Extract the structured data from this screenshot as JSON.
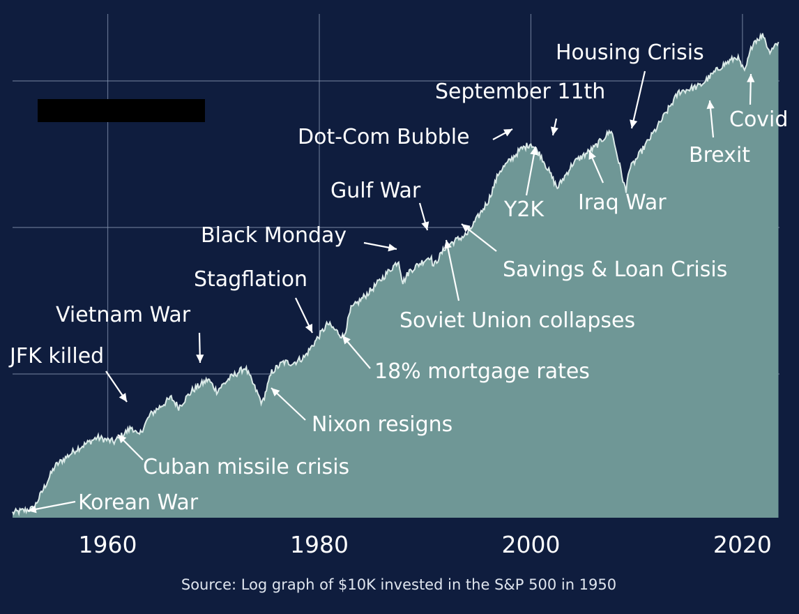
{
  "chart_data": {
    "type": "area",
    "xlabel": "",
    "ylabel": "",
    "source": "Source: Log graph of $10K invested in the S&P 500 in 1950",
    "xlim": [
      1951,
      2023.5
    ],
    "x_ticks": [
      1960,
      1980,
      2000,
      2020
    ],
    "x_tick_labels": [
      "1960",
      "1980",
      "2000",
      "2020"
    ],
    "y_scale": "log",
    "grid": true,
    "colors": {
      "background": "#0f1d3e",
      "area": "#6f9796",
      "line": "#dbeae8",
      "grid": "#8797b2",
      "text": "#ffffff",
      "redaction": "#000000"
    },
    "x": [
      1951.0,
      1953.0,
      1955.0,
      1957.0,
      1959.0,
      1960.6,
      1962.3,
      1962.9,
      1964.0,
      1966.0,
      1966.7,
      1968.0,
      1969.5,
      1970.3,
      1971.5,
      1973.0,
      1974.6,
      1975.5,
      1976.6,
      1977.5,
      1978.6,
      1980.0,
      1980.8,
      1982.3,
      1983.0,
      1985.0,
      1987.5,
      1987.9,
      1988.5,
      1990.5,
      1990.8,
      1992.0,
      1994.0,
      1996.0,
      1997.0,
      1999.0,
      2000.0,
      2001.0,
      2002.5,
      2004.0,
      2006.0,
      2007.6,
      2009.0,
      2009.2,
      2010.0,
      2012.0,
      2014.0,
      2016.0,
      2018.0,
      2019.5,
      2020.2,
      2021.0,
      2022.0,
      2022.5,
      2023.4
    ],
    "y": [
      0.016,
      0.03,
      0.168,
      0.223,
      0.262,
      0.248,
      0.296,
      0.265,
      0.336,
      0.392,
      0.361,
      0.416,
      0.452,
      0.414,
      0.455,
      0.491,
      0.373,
      0.476,
      0.508,
      0.505,
      0.525,
      0.595,
      0.634,
      0.589,
      0.682,
      0.747,
      0.84,
      0.768,
      0.805,
      0.855,
      0.822,
      0.888,
      0.927,
      1.037,
      1.13,
      1.202,
      1.223,
      1.18,
      1.077,
      1.159,
      1.209,
      1.266,
      1.061,
      1.132,
      1.173,
      1.279,
      1.391,
      1.411,
      1.475,
      1.506,
      1.454,
      1.554,
      1.577,
      1.524,
      1.554
    ],
    "annotations": [
      {
        "label": "Korean War",
        "year": 1951.5
      },
      {
        "label": "Cuban missile crisis",
        "year": 1962.3
      },
      {
        "label": "JFK killed",
        "year": 1963.9
      },
      {
        "label": "Vietnam War",
        "year": 1968.5
      },
      {
        "label": "Nixon resigns",
        "year": 1974.6
      },
      {
        "label": "Stagflation",
        "year": 1979.5
      },
      {
        "label": "18% mortgage rates",
        "year": 1982.3
      },
      {
        "label": "Black Monday",
        "year": 1987.5
      },
      {
        "label": "Gulf War",
        "year": 1990.5
      },
      {
        "label": "Savings & Loan Crisis",
        "year": 1993.0
      },
      {
        "label": "Soviet Union collapses",
        "year": 1991.5
      },
      {
        "label": "Dot-Com Bubble",
        "year": 2000.0
      },
      {
        "label": "Y2K",
        "year": 2000.0
      },
      {
        "label": "September 11th",
        "year": 2001.5
      },
      {
        "label": "Iraq War",
        "year": 2003.0
      },
      {
        "label": "Housing Crisis",
        "year": 2009.0
      },
      {
        "label": "Brexit",
        "year": 2016.0
      },
      {
        "label": "Covid",
        "year": 2020.3
      }
    ]
  }
}
